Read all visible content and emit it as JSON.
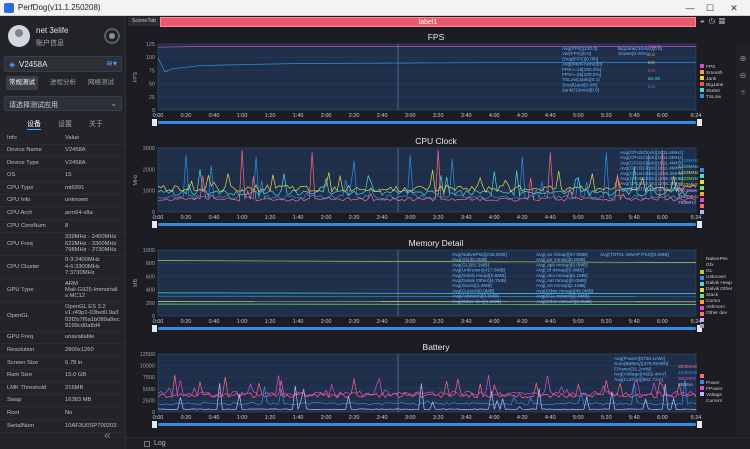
{
  "window": {
    "title": "PerfDog(v11.1.250208)",
    "min": "—",
    "max": "☐",
    "close": "✕"
  },
  "user": {
    "name": "net 3elife",
    "info": "账户信息"
  },
  "device": {
    "name": "V2458A"
  },
  "modes": [
    "常规测试",
    "进程分析",
    "网络测试"
  ],
  "app_select": {
    "placeholder": "请选择测试应用"
  },
  "side_tabs": [
    "设备",
    "设置",
    "关于"
  ],
  "info_header": {
    "key": "Info",
    "value": "Value"
  },
  "info_rows": [
    {
      "k": "Device Name",
      "v": [
        "V2458A"
      ]
    },
    {
      "k": "Device Type",
      "v": [
        "V2458A"
      ]
    },
    {
      "k": "OS",
      "v": [
        "15"
      ]
    },
    {
      "k": "CPU Type",
      "v": [
        "mt6991"
      ]
    },
    {
      "k": "CPU Info",
      "v": [
        "unknown"
      ]
    },
    {
      "k": "CPU Arch",
      "v": [
        "arm64-v8a"
      ]
    },
    {
      "k": "CPU CoreNum",
      "v": [
        "8"
      ]
    },
    {
      "k": "CPU Freq",
      "v": [
        "339MHz - 2400MHz",
        "622MHz - 3300MHz",
        "798MHz - 3730MHz"
      ]
    },
    {
      "k": "CPU Cluster",
      "v": [
        "0-3:2400MHz",
        "4-6:3300MHz",
        "7:3730MHz"
      ]
    },
    {
      "k": "GPU Type",
      "v": [
        "ARM",
        "Mali-G925-Immortali",
        "s MC12"
      ]
    },
    {
      "k": "OpenGL",
      "v": [
        "OpenGL ES 3.2",
        "v1.r49p1-03bet0.9a3",
        "03f2b7f6a1b089a8ec",
        "9199cd0a8d4"
      ]
    },
    {
      "k": "GPU Freq",
      "v": [
        "unavailable"
      ]
    },
    {
      "k": "Resolution",
      "v": [
        "2800x1260"
      ]
    },
    {
      "k": "Screen Size",
      "v": [
        "6.78 in"
      ]
    },
    {
      "k": "Ram Size",
      "v": [
        "15.0 GB"
      ]
    },
    {
      "k": "LMK Threshold",
      "v": [
        "216MB"
      ]
    },
    {
      "k": "Swap",
      "v": [
        "16383 MB"
      ]
    },
    {
      "k": "Root",
      "v": [
        "No"
      ]
    },
    {
      "k": "SerialNum",
      "v": [
        "10AF3U0SP700203"
      ]
    }
  ],
  "toolbar": {
    "scene_tab": "SceneTab",
    "label": "label1"
  },
  "log_label": "Log",
  "colors": {
    "accent": "#2f8fe8",
    "label_bar": "#ea5a6a",
    "fps": "#d94ad0",
    "memory_line": "#b8c94a"
  },
  "chart_data": [
    {
      "type": "line",
      "title": "FPS",
      "ylabel": "FPS",
      "ylim": [
        0,
        125
      ],
      "yticks": [
        0,
        25,
        50,
        75,
        100,
        125
      ],
      "x_ticks": [
        "0:00",
        "0:20",
        "0:40",
        "1:00",
        "1:20",
        "1:40",
        "2:00",
        "2:20",
        "2:40",
        "3:00",
        "3:20",
        "3:40",
        "4:00",
        "4:20",
        "4:40",
        "5:00",
        "5:20",
        "5:40",
        "6:00",
        "6:24"
      ],
      "series": [
        {
          "color": "#d94ad0",
          "points": [
            [
              0,
              119
            ],
            [
              24,
              120
            ],
            [
              60,
              120
            ],
            [
              120,
              120
            ],
            [
              180,
              120
            ],
            [
              240,
              120
            ],
            [
              300,
              120
            ],
            [
              384,
              120
            ]
          ]
        },
        {
          "color": "#2f8fe8",
          "points": [
            [
              0,
              99
            ],
            [
              5,
              72
            ],
            [
              10,
              78
            ],
            [
              30,
              84
            ],
            [
              60,
              86
            ],
            [
              100,
              88
            ],
            [
              180,
              89
            ],
            [
              260,
              90
            ],
            [
              384,
              90
            ]
          ]
        }
      ],
      "stats": [
        "Avg(FPS)[120.0]",
        "Var(FPS)[0.0]",
        "Drop(FPS)[0.0/h]",
        "Avg(InterFrame)[0]",
        "FPS>=18[100.0%]",
        "FPS>=25[100.0%]",
        "TSLow(Jank)[0.1]",
        "SmallJank[0.0/h]",
        "Jank(/10min)[0.0]"
      ],
      "stats2": [
        "BigJank(/10min)[0.0]",
        "Stutter[0.00%]"
      ],
      "legend": [
        {
          "name": "FPS",
          "value": "122.0",
          "color": "#d94ad0"
        },
        {
          "name": "Smooth",
          "value": "0.0",
          "color": "#ff9f3a"
        },
        {
          "name": "Jank",
          "value": "0.0",
          "color": "#e8d94a"
        },
        {
          "name": "BigJank",
          "value": "0.0",
          "color": "#ff4a4a"
        },
        {
          "name": "Stutter",
          "value": "84.06",
          "color": "#4ad9d9"
        },
        {
          "name": "TSLow",
          "value": "0.0",
          "color": "#2f8fe8"
        }
      ]
    },
    {
      "type": "line",
      "title": "CPU Clock",
      "ylabel": "MHz",
      "ylim": [
        0,
        3000
      ],
      "yticks": [
        0,
        1000,
        2000,
        3000
      ],
      "x_ticks": [
        "0:00",
        "0:20",
        "0:40",
        "1:00",
        "1:20",
        "1:40",
        "2:00",
        "2:20",
        "2:40",
        "3:00",
        "3:20",
        "3:40",
        "4:00",
        "4:20",
        "4:40",
        "5:00",
        "5:20",
        "5:40",
        "6:00",
        "6:24"
      ],
      "series": [
        {
          "color": "#2f8fe8",
          "base": 700,
          "spikes": [
            [
              20,
              2700
            ],
            [
              38,
              2200
            ],
            [
              70,
              2600
            ],
            [
              85,
              2700
            ],
            [
              140,
              2400
            ],
            [
              180,
              2700
            ],
            [
              210,
              2500
            ],
            [
              260,
              2600
            ],
            [
              320,
              2800
            ],
            [
              350,
              2700
            ]
          ]
        },
        {
          "color": "#4ad9d9",
          "base": 900,
          "spikes": [
            [
              30,
              2000
            ],
            [
              90,
              1800
            ],
            [
              150,
              1700
            ],
            [
              240,
              1900
            ],
            [
              300,
              1600
            ],
            [
              340,
              2100
            ]
          ]
        },
        {
          "color": "#e8d94a",
          "base": 1100,
          "spikes": [
            [
              50,
              1800
            ],
            [
              130,
              1700
            ],
            [
              230,
              1600
            ],
            [
              310,
              1800
            ]
          ]
        },
        {
          "color": "#ff6a7a",
          "base": 600,
          "spikes": [
            [
              60,
              2900
            ],
            [
              110,
              2800
            ],
            [
              200,
              2900
            ],
            [
              280,
              2800
            ],
            [
              360,
              2900
            ]
          ]
        }
      ],
      "stats": [
        "Avg(CPU0Clock)[1011.4MHz]",
        "Avg(CPU1Clock)[1011.4MHz]",
        "Avg(CPU2Clock)[1011.4MHz]",
        "Avg(CPU3Clock)[1011.4MHz]",
        "Avg(CPU4Clock)[1285.3MHz]",
        "Avg(CPU5Clock)[1285.3MHz]",
        "Avg(CPU6Clock)[1285.3MHz]",
        "Avg(CPU7Clock)[1285.1MHz]"
      ],
      "legend": [
        {
          "name": "1423MHz",
          "color": "#2f8fe8"
        },
        {
          "name": "1423MHz",
          "color": "#4ad9d9"
        },
        {
          "name": "1423MHz",
          "color": "#e8d94a"
        },
        {
          "name": "1423MHz",
          "color": "#6ae86a"
        },
        {
          "name": "1123MHz",
          "color": "#ff9f3a"
        },
        {
          "name": "1123MHz",
          "color": "#d94ad0"
        },
        {
          "name": "1123MHz",
          "color": "#ff6a7a"
        },
        {
          "name": "798MHz",
          "color": "#b6b6ff"
        }
      ]
    },
    {
      "type": "line",
      "title": "Memory Detail",
      "ylabel": "MB",
      "ylim": [
        0,
        1000
      ],
      "yticks": [
        0,
        200,
        400,
        600,
        800,
        1000
      ],
      "x_ticks": [
        "0:00",
        "0:20",
        "0:40",
        "1:00",
        "1:20",
        "1:40",
        "2:00",
        "2:20",
        "2:40",
        "3:00",
        "3:20",
        "3:40",
        "4:00",
        "4:20",
        "4:40",
        "5:00",
        "5:20",
        "5:40",
        "6:00",
        "6:24"
      ],
      "series": [
        {
          "color": "#b8c94a",
          "points": [
            [
              0,
              840
            ],
            [
              384,
              810
            ]
          ]
        },
        {
          "color": "#4ad9d9",
          "points": [
            [
              0,
              350
            ],
            [
              384,
              340
            ]
          ]
        },
        {
          "color": "#2f8fe8",
          "points": [
            [
              0,
              300
            ],
            [
              384,
              295
            ]
          ]
        },
        {
          "color": "#e8d94a",
          "points": [
            [
              0,
              220
            ],
            [
              384,
              215
            ]
          ]
        },
        {
          "color": "#6ae86a",
          "points": [
            [
              0,
              180
            ],
            [
              384,
              175
            ]
          ]
        }
      ],
      "stats": [
        "Avg(NativePss)[236.0MB]",
        "Avg(Gfx)[0.0MB]",
        "Avg(GL)[81.2MB]",
        "Avg(Unknown)[417.6MB]",
        "Avg(Dalvik Heap)[5.5MB]",
        "Avg(Dalvik Other)[4.7MB]",
        "Avg(Stack)[1.4MB]",
        "Avg(Cursor)[0.0MB]",
        "Avg(Ashmem)[0.0MB]",
        "Avg(Other dev)[1.2MB]"
      ],
      "stats2": [
        "Avg(.so mmap)[97.0MB]",
        "Avg(.jar mmap)[0.0MB]",
        "Avg(.apk mmap)[0.0MB]",
        "Avg(.ttf mmap)[0.0MB]",
        "Avg(.dex mmap)[6.1MB]",
        "Avg(.oat mmap)[0.0MB]",
        "Avg(.art mmap)[2.1MB]",
        "Avg(Other mmap)[49.0MB]",
        "Avg(EGL mtrack)[0.0MB]",
        "Avg(Other mtrack)[0.0MB]"
      ],
      "stats3": [
        "Avg(TOTAL SWAP PSS)[0.0MB]"
      ],
      "legend": [
        {
          "name": "NativePss",
          "color": "#b8c94a"
        },
        {
          "name": "Gfx",
          "color": "#2f8fe8"
        },
        {
          "name": "GL",
          "color": "#4ad9d9"
        },
        {
          "name": "Unknown",
          "color": "#e8d94a"
        },
        {
          "name": "Dalvik Heap",
          "color": "#6ae86a"
        },
        {
          "name": "Dalvik Other",
          "color": "#ff9f3a"
        },
        {
          "name": "Stack",
          "color": "#d94ad0"
        },
        {
          "name": "Cursor",
          "color": "#ff6a7a"
        },
        {
          "name": "Ashmem",
          "color": "#b6b6ff"
        },
        {
          "name": "Other dev",
          "color": "#9aa0ac"
        }
      ]
    },
    {
      "type": "line",
      "title": "Battery",
      "ylabel": "",
      "ylim": [
        0,
        12500
      ],
      "yticks": [
        0,
        2500,
        5000,
        7500,
        10000,
        12500
      ],
      "x_ticks": [
        "0:00",
        "0:20",
        "0:40",
        "1:00",
        "1:20",
        "1:40",
        "2:00",
        "2:20",
        "2:40",
        "3:00",
        "3:20",
        "3:40",
        "4:00",
        "4:20",
        "4:40",
        "5:00",
        "5:20",
        "5:40",
        "6:00",
        "6:24"
      ],
      "series": [
        {
          "color": "#ff6a7a",
          "base": 3600,
          "spikes": [
            [
              12,
              8000
            ],
            [
              30,
              6500
            ],
            [
              48,
              7500
            ],
            [
              72,
              6200
            ],
            [
              88,
              6800
            ],
            [
              115,
              6000
            ],
            [
              140,
              7200
            ],
            [
              175,
              6500
            ],
            [
              205,
              6000
            ],
            [
              240,
              5800
            ],
            [
              270,
              6300
            ],
            [
              300,
              5900
            ],
            [
              330,
              6200
            ],
            [
              360,
              5800
            ]
          ]
        },
        {
          "color": "#2f8fe8",
          "base": 1800,
          "spikes": []
        },
        {
          "color": "#d94ad0",
          "base": 3900,
          "spikes": []
        },
        {
          "color": "#b6b6ff",
          "base": 600,
          "spikes": []
        }
      ],
      "stats": [
        "Avg(Power)[3736.1mW]",
        "Sum(Battery)[379.0mWh]",
        "FPower[31.2mW]",
        "Avg(Voltage)[4682.4mV]",
        "Avg(Current)[802.7mA]"
      ],
      "legend": [
        {
          "name": "3936mW",
          "color": "#ff6a7a"
        },
        {
          "name": "1845mW",
          "color": "#2f8fe8"
        },
        {
          "name": "3922mV",
          "color": "#d94ad0"
        },
        {
          "name": "850mA",
          "color": "#b6b6ff"
        }
      ],
      "legend2": [
        "Power",
        "FPower",
        "Voltage",
        "Current"
      ]
    }
  ]
}
